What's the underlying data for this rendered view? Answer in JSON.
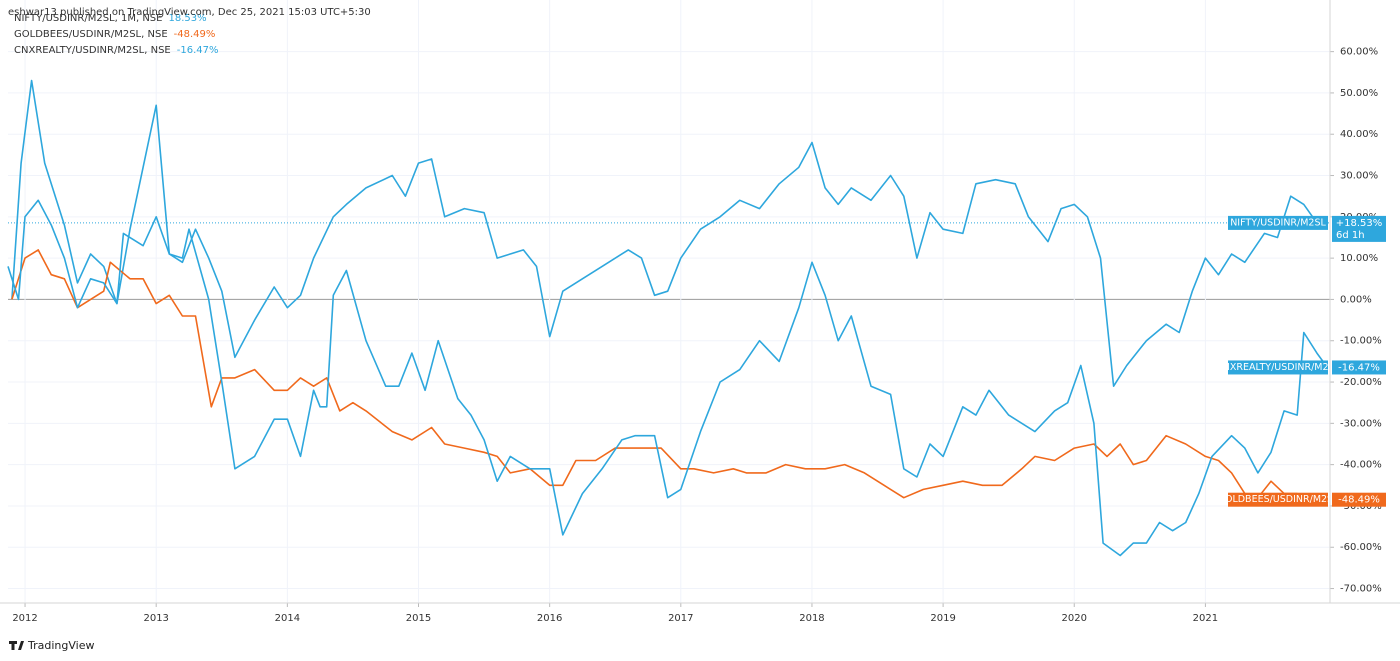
{
  "chart_data": {
    "type": "line",
    "caption": "eshwar13 published on TradingView.com, Dec 25, 2021 15:03 UTC+5:30",
    "source": "TradingView",
    "xlim": [
      2011.87,
      2021.95
    ],
    "xticks": [
      2012,
      2013,
      2014,
      2015,
      2016,
      2017,
      2018,
      2019,
      2020,
      2021
    ],
    "ylim": [
      -73.5,
      72.5
    ],
    "yticks": [
      {
        "value": 60,
        "label": "60.00%"
      },
      {
        "value": 50,
        "label": "50.00%"
      },
      {
        "value": 40,
        "label": "40.00%"
      },
      {
        "value": 30,
        "label": "30.00%"
      },
      {
        "value": 20,
        "label": "20.00%"
      },
      {
        "value": 10,
        "label": "10.00%"
      },
      {
        "value": 0,
        "label": "0.00%"
      },
      {
        "value": -10,
        "label": "-10.00%"
      },
      {
        "value": -20,
        "label": "-20.00%"
      },
      {
        "value": -30,
        "label": "-30.00%"
      },
      {
        "value": -40,
        "label": "-40.00%"
      },
      {
        "value": -50,
        "label": "-50.00%"
      },
      {
        "value": -60,
        "label": "-60.00%"
      },
      {
        "value": -70,
        "label": "-70.00%"
      }
    ],
    "grid": true,
    "series": [
      {
        "name": "NIFTY/USDINR/M2SL, 1M, NSE",
        "tag": "NIFTY/USDINR/M2SL",
        "last_value_label": "18.53%",
        "price_label": "+18.53%",
        "countdown": "6d 1h",
        "color": "#2ea7dd",
        "x": [
          2011.9,
          2011.97,
          2012.05,
          2012.15,
          2012.3,
          2012.4,
          2012.5,
          2012.6,
          2012.7,
          2012.8,
          2012.9,
          2013.0,
          2013.1,
          2013.2,
          2013.3,
          2013.4,
          2013.5,
          2013.6,
          2013.75,
          2013.9,
          2014.0,
          2014.1,
          2014.2,
          2014.35,
          2014.45,
          2014.6,
          2014.8,
          2014.9,
          2015.0,
          2015.1,
          2015.2,
          2015.35,
          2015.5,
          2015.6,
          2015.8,
          2015.9,
          2016.0,
          2016.1,
          2016.25,
          2016.4,
          2016.6,
          2016.7,
          2016.8,
          2016.9,
          2017.0,
          2017.15,
          2017.3,
          2017.45,
          2017.6,
          2017.75,
          2017.9,
          2018.0,
          2018.1,
          2018.2,
          2018.3,
          2018.45,
          2018.6,
          2018.7,
          2018.8,
          2018.9,
          2019.0,
          2019.15,
          2019.25,
          2019.4,
          2019.55,
          2019.65,
          2019.8,
          2019.9,
          2020.0,
          2020.1,
          2020.2,
          2020.3,
          2020.4,
          2020.55,
          2020.7,
          2020.8,
          2020.9,
          2021.0,
          2021.1,
          2021.2,
          2021.3,
          2021.45,
          2021.55,
          2021.65,
          2021.75,
          2021.85
        ],
        "values": [
          0,
          33,
          53,
          33,
          18,
          4,
          11,
          8,
          -1,
          17,
          32,
          47,
          11,
          9,
          17,
          10,
          2,
          -14,
          -5,
          3,
          -2,
          1,
          10,
          20,
          23,
          27,
          30,
          25,
          33,
          34,
          20,
          22,
          21,
          10,
          12,
          8,
          -9,
          2,
          5,
          8,
          12,
          10,
          1,
          2,
          10,
          17,
          20,
          24,
          22,
          28,
          32,
          38,
          27,
          23,
          27,
          24,
          30,
          25,
          10,
          21,
          17,
          16,
          28,
          29,
          28,
          20,
          14,
          22,
          23,
          20,
          10,
          -21,
          -16,
          -10,
          -6,
          -8,
          2,
          10,
          6,
          11,
          9,
          16,
          15,
          25,
          23,
          18.53
        ]
      },
      {
        "name": "GOLDBEES/USDINR/M2SL, NSE",
        "tag": "GOLDBEES/USDINR/M2SL",
        "last_value_label": "-48.49%",
        "price_label": "-48.49%",
        "color": "#f0691c",
        "x": [
          2011.9,
          2012.0,
          2012.1,
          2012.2,
          2012.3,
          2012.4,
          2012.5,
          2012.6,
          2012.65,
          2012.8,
          2012.9,
          2013.0,
          2013.1,
          2013.2,
          2013.3,
          2013.42,
          2013.5,
          2013.6,
          2013.75,
          2013.9,
          2014.0,
          2014.1,
          2014.2,
          2014.3,
          2014.4,
          2014.5,
          2014.6,
          2014.8,
          2014.95,
          2015.1,
          2015.2,
          2015.35,
          2015.5,
          2015.6,
          2015.7,
          2015.85,
          2016.0,
          2016.1,
          2016.2,
          2016.35,
          2016.5,
          2016.7,
          2016.85,
          2017.0,
          2017.1,
          2017.25,
          2017.4,
          2017.5,
          2017.65,
          2017.8,
          2017.95,
          2018.1,
          2018.25,
          2018.4,
          2018.55,
          2018.7,
          2018.85,
          2019.0,
          2019.15,
          2019.3,
          2019.45,
          2019.6,
          2019.7,
          2019.85,
          2020.0,
          2020.15,
          2020.25,
          2020.35,
          2020.45,
          2020.55,
          2020.7,
          2020.85,
          2021.0,
          2021.1,
          2021.2,
          2021.3,
          2021.4,
          2021.5,
          2021.6,
          2021.7,
          2021.83
        ],
        "values": [
          0,
          10,
          12,
          6,
          5,
          -2,
          0,
          2,
          9,
          5,
          5,
          -1,
          1,
          -4,
          -4,
          -26,
          -19,
          -19,
          -17,
          -22,
          -22,
          -19,
          -21,
          -19,
          -27,
          -25,
          -27,
          -32,
          -34,
          -31,
          -35,
          -36,
          -37,
          -38,
          -42,
          -41,
          -45,
          -45,
          -39,
          -39,
          -36,
          -36,
          -36,
          -41,
          -41,
          -42,
          -41,
          -42,
          -42,
          -40,
          -41,
          -41,
          -40,
          -42,
          -45,
          -48,
          -46,
          -45,
          -44,
          -45,
          -45,
          -41,
          -38,
          -39,
          -36,
          -35,
          -38,
          -35,
          -40,
          -39,
          -33,
          -35,
          -38,
          -39,
          -42,
          -47,
          -48,
          -44,
          -47,
          -47,
          -48.49
        ]
      },
      {
        "name": "CNXREALTY/USDINR/M2SL, NSE",
        "tag": "CNXREALTY/USDINR/M2SL",
        "last_value_label": "-16.47%",
        "price_label": "-16.47%",
        "color": "#2ea7dd",
        "x": [
          2011.87,
          2011.95,
          2012.0,
          2012.1,
          2012.2,
          2012.3,
          2012.4,
          2012.5,
          2012.6,
          2012.7,
          2012.75,
          2012.9,
          2013.0,
          2013.1,
          2013.2,
          2013.25,
          2013.4,
          2013.5,
          2013.6,
          2013.75,
          2013.9,
          2014.0,
          2014.1,
          2014.2,
          2014.25,
          2014.3,
          2014.35,
          2014.45,
          2014.6,
          2014.75,
          2014.85,
          2014.95,
          2015.05,
          2015.15,
          2015.3,
          2015.4,
          2015.5,
          2015.6,
          2015.7,
          2015.85,
          2016.0,
          2016.1,
          2016.25,
          2016.4,
          2016.55,
          2016.65,
          2016.8,
          2016.9,
          2017.0,
          2017.15,
          2017.3,
          2017.45,
          2017.6,
          2017.75,
          2017.9,
          2018.0,
          2018.1,
          2018.2,
          2018.3,
          2018.45,
          2018.6,
          2018.7,
          2018.8,
          2018.9,
          2019.0,
          2019.15,
          2019.25,
          2019.35,
          2019.5,
          2019.7,
          2019.85,
          2019.95,
          2020.05,
          2020.15,
          2020.22,
          2020.35,
          2020.45,
          2020.55,
          2020.65,
          2020.75,
          2020.85,
          2020.95,
          2021.05,
          2021.2,
          2021.3,
          2021.4,
          2021.5,
          2021.6,
          2021.7,
          2021.75,
          2021.85,
          2021.93
        ],
        "values": [
          8,
          0,
          20,
          24,
          18,
          10,
          -2,
          5,
          4,
          -1,
          16,
          13,
          20,
          11,
          10,
          17,
          0,
          -20,
          -41,
          -38,
          -29,
          -29,
          -38,
          -22,
          -26,
          -26,
          1,
          7,
          -10,
          -21,
          -21,
          -13,
          -22,
          -10,
          -24,
          -28,
          -34,
          -44,
          -38,
          -41,
          -41,
          -57,
          -47,
          -41,
          -34,
          -33,
          -33,
          -48,
          -46,
          -32,
          -20,
          -17,
          -10,
          -15,
          -2,
          9,
          1,
          -10,
          -4,
          -21,
          -23,
          -41,
          -43,
          -35,
          -38,
          -26,
          -28,
          -22,
          -28,
          -32,
          -27,
          -25,
          -16,
          -30,
          -59,
          -62,
          -59,
          -59,
          -54,
          -56,
          -54,
          -47,
          -38,
          -33,
          -36,
          -42,
          -37,
          -27,
          -28,
          -8,
          -13,
          -16.47
        ]
      }
    ]
  }
}
